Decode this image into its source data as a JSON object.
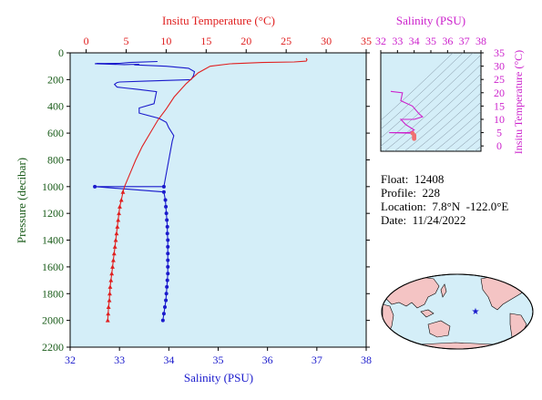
{
  "colors": {
    "plot_bg": "#d4eef8",
    "salinity": "#1a1acc",
    "temperature": "#e02020",
    "ts_axis": "#cc22cc",
    "pressure_axis": "#1a5c1a",
    "land": "#f4c4c4",
    "ocean": "#d4eef8"
  },
  "chart_data": [
    {
      "type": "line",
      "title": "",
      "ylabel": "Pressure (decibar)",
      "ylim": [
        0,
        2200
      ],
      "y_inverted": true,
      "y_ticks": [
        "0",
        "200",
        "400",
        "600",
        "800",
        "1000",
        "1200",
        "1400",
        "1600",
        "1800",
        "2000",
        "2200"
      ],
      "x_bottom": {
        "label": "Salinity (PSU)",
        "range": [
          32,
          38
        ],
        "ticks": [
          "32",
          "33",
          "34",
          "35",
          "36",
          "37",
          "38"
        ]
      },
      "x_top": {
        "label": "Insitu Temperature (°C)",
        "range": [
          -2,
          35
        ],
        "ticks": [
          "0",
          "5",
          "10",
          "15",
          "20",
          "25",
          "30",
          "35"
        ]
      },
      "series": [
        {
          "name": "Salinity (PSU)",
          "axis": "bottom",
          "markers_from_index": 30,
          "points": [
            [
              33.77,
              65
            ],
            [
              33.2,
              72
            ],
            [
              33.0,
              78
            ],
            [
              32.7,
              80
            ],
            [
              32.55,
              78
            ],
            [
              32.5,
              82
            ],
            [
              33.1,
              88
            ],
            [
              33.4,
              85
            ],
            [
              33.3,
              90
            ],
            [
              33.95,
              100
            ],
            [
              34.4,
              115
            ],
            [
              34.52,
              140
            ],
            [
              34.5,
              170
            ],
            [
              34.45,
              200
            ],
            [
              33.5,
              212
            ],
            [
              33.0,
              218
            ],
            [
              32.95,
              222
            ],
            [
              32.9,
              236
            ],
            [
              32.95,
              256
            ],
            [
              33.1,
              262
            ],
            [
              33.35,
              272
            ],
            [
              33.75,
              290
            ],
            [
              33.7,
              380
            ],
            [
              33.4,
              412
            ],
            [
              33.4,
              450
            ],
            [
              33.8,
              490
            ],
            [
              33.95,
              520
            ],
            [
              34.0,
              560
            ],
            [
              34.1,
              620
            ],
            [
              34.07,
              660
            ],
            [
              33.9,
              1000
            ],
            [
              32.5,
              1000
            ],
            [
              33.9,
              1040
            ],
            [
              33.93,
              1100
            ],
            [
              33.94,
              1150
            ],
            [
              33.95,
              1200
            ],
            [
              33.96,
              1250
            ],
            [
              33.97,
              1300
            ],
            [
              33.97,
              1350
            ],
            [
              33.98,
              1400
            ],
            [
              33.98,
              1450
            ],
            [
              33.98,
              1500
            ],
            [
              33.98,
              1550
            ],
            [
              33.98,
              1600
            ],
            [
              33.98,
              1650
            ],
            [
              33.97,
              1700
            ],
            [
              33.96,
              1750
            ],
            [
              33.95,
              1800
            ],
            [
              33.94,
              1850
            ],
            [
              33.92,
              1900
            ],
            [
              33.9,
              1950
            ],
            [
              33.88,
              2000
            ]
          ]
        },
        {
          "name": "Insitu Temperature (°C)",
          "axis": "top",
          "markers_from_index": 17,
          "points": [
            [
              27.5,
              40
            ],
            [
              27.6,
              52
            ],
            [
              27.5,
              62
            ],
            [
              26.0,
              68
            ],
            [
              22.0,
              72
            ],
            [
              18.0,
              82
            ],
            [
              15.5,
              100
            ],
            [
              14.0,
              150
            ],
            [
              12.5,
              230
            ],
            [
              11.0,
              330
            ],
            [
              10.0,
              420
            ],
            [
              9.0,
              500
            ],
            [
              8.0,
              600
            ],
            [
              7.0,
              700
            ],
            [
              6.2,
              800
            ],
            [
              5.5,
              900
            ],
            [
              4.8,
              1000
            ],
            [
              4.6,
              1040
            ],
            [
              4.4,
              1100
            ],
            [
              4.2,
              1150
            ],
            [
              4.1,
              1200
            ],
            [
              4.0,
              1250
            ],
            [
              3.9,
              1300
            ],
            [
              3.8,
              1350
            ],
            [
              3.7,
              1400
            ],
            [
              3.6,
              1450
            ],
            [
              3.5,
              1500
            ],
            [
              3.4,
              1550
            ],
            [
              3.3,
              1600
            ],
            [
              3.2,
              1650
            ],
            [
              3.1,
              1700
            ],
            [
              3.0,
              1750
            ],
            [
              2.95,
              1800
            ],
            [
              2.9,
              1850
            ],
            [
              2.8,
              1900
            ],
            [
              2.75,
              1950
            ],
            [
              2.7,
              2000
            ]
          ]
        }
      ]
    },
    {
      "type": "scatter",
      "title": "",
      "x_top": {
        "label": "Salinity (PSU)",
        "range": [
          32,
          38
        ],
        "ticks": [
          "32",
          "33",
          "34",
          "35",
          "36",
          "37",
          "38"
        ]
      },
      "y_right": {
        "label": "Insitu Temperature (°C)",
        "range": [
          -2,
          35
        ],
        "ticks": [
          "0",
          "5",
          "10",
          "15",
          "20",
          "25",
          "30",
          "35"
        ]
      },
      "series": [
        {
          "name": "T-S profile",
          "points": [
            [
              32.6,
              20.5
            ],
            [
              33.3,
              20.0
            ],
            [
              33.2,
              17.0
            ],
            [
              33.9,
              15.0
            ],
            [
              34.3,
              12.0
            ],
            [
              34.5,
              11.0
            ],
            [
              34.0,
              10.0
            ],
            [
              33.2,
              10.0
            ],
            [
              33.5,
              8.0
            ],
            [
              34.0,
              6.0
            ],
            [
              33.7,
              5.0
            ],
            [
              32.5,
              5.0
            ],
            [
              33.9,
              4.8
            ],
            [
              34.0,
              4.0
            ],
            [
              34.0,
              3.5
            ],
            [
              34.0,
              3.0
            ],
            [
              34.0,
              2.7
            ]
          ]
        }
      ]
    }
  ],
  "info": {
    "float": "Float:  12408",
    "profile": "Profile:  228",
    "location": "Location:  7.8°N  -122.0°E",
    "date": "Date:  11/24/2022"
  },
  "map": {
    "marker_lon": -122.0,
    "marker_lat": 7.8
  }
}
